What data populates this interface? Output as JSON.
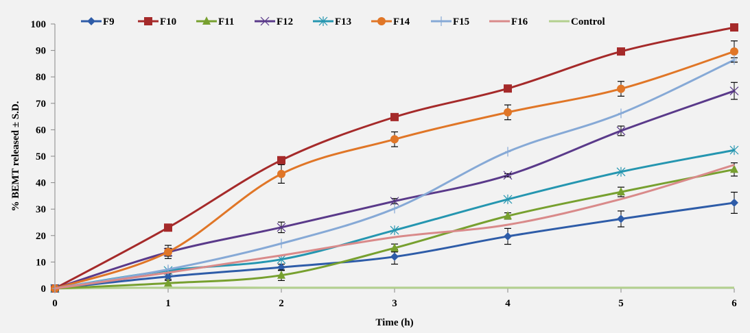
{
  "chart_data": {
    "type": "line",
    "title": "",
    "xlabel": "Time (h)",
    "ylabel": "% BEMT released ± S.D.",
    "x": [
      0,
      1,
      2,
      3,
      4,
      5,
      6
    ],
    "xlim": [
      0,
      6
    ],
    "ylim": [
      0,
      100
    ],
    "x_ticks": [
      "0",
      "1",
      "2",
      "3",
      "4",
      "5",
      "6"
    ],
    "y_ticks": [
      "0",
      "10",
      "20",
      "30",
      "40",
      "50",
      "60",
      "70",
      "80",
      "90",
      "100"
    ],
    "grid": false,
    "legend_position": "top",
    "smooth": true,
    "series": [
      {
        "name": "F9",
        "color": "#2e5ca8",
        "marker": "diamond",
        "values": [
          0,
          4.5,
          8.0,
          12.0,
          19.7,
          26.3,
          32.4
        ],
        "errors": [
          0,
          1.0,
          1.2,
          2.8,
          3.0,
          3.0,
          4.0
        ]
      },
      {
        "name": "F10",
        "color": "#a52a2a",
        "marker": "square",
        "values": [
          0,
          23.0,
          48.5,
          64.8,
          75.6,
          89.6,
          98.7
        ],
        "errors": [
          0,
          0,
          0,
          0,
          0,
          0,
          0
        ]
      },
      {
        "name": "F11",
        "color": "#77a02f",
        "marker": "triangle",
        "values": [
          0,
          2.0,
          5.0,
          15.3,
          27.4,
          36.5,
          45.0
        ],
        "errors": [
          0,
          1.0,
          2.0,
          1.5,
          1.2,
          1.8,
          2.5
        ]
      },
      {
        "name": "F12",
        "color": "#5a3a8a",
        "marker": "x",
        "values": [
          0,
          13.7,
          23.1,
          33.0,
          42.8,
          59.6,
          74.7
        ],
        "errors": [
          0,
          1.5,
          2.0,
          1.0,
          0.6,
          1.8,
          3.2
        ]
      },
      {
        "name": "F13",
        "color": "#2596b0",
        "marker": "asterisk",
        "values": [
          0,
          6.8,
          11.0,
          22.0,
          33.7,
          44.1,
          52.3
        ],
        "errors": [
          0,
          0,
          0,
          0,
          0,
          0,
          0
        ]
      },
      {
        "name": "F14",
        "color": "#e07627",
        "marker": "circle",
        "values": [
          0,
          13.8,
          43.3,
          56.4,
          66.6,
          75.5,
          89.6
        ],
        "errors": [
          0,
          2.5,
          3.5,
          2.8,
          2.8,
          2.8,
          4.0
        ]
      },
      {
        "name": "F15",
        "color": "#86a9d6",
        "marker": "plus",
        "values": [
          0,
          7.2,
          17.0,
          30.2,
          51.7,
          66.2,
          86.4
        ],
        "errors": [
          0,
          0,
          0,
          0,
          0,
          0,
          0.8
        ]
      },
      {
        "name": "F16",
        "color": "#d98a8a",
        "marker": "none",
        "values": [
          0,
          6.0,
          12.5,
          19.4,
          24.1,
          33.8,
          46.7
        ],
        "errors": [
          0,
          0,
          0,
          0,
          0,
          0,
          0
        ]
      },
      {
        "name": "Control",
        "color": "#b3d08e",
        "marker": "none",
        "values": [
          0,
          0.3,
          0.3,
          0.3,
          0.3,
          0.3,
          0.3
        ],
        "errors": [
          0,
          0,
          0,
          0,
          0,
          0,
          0
        ]
      }
    ]
  }
}
